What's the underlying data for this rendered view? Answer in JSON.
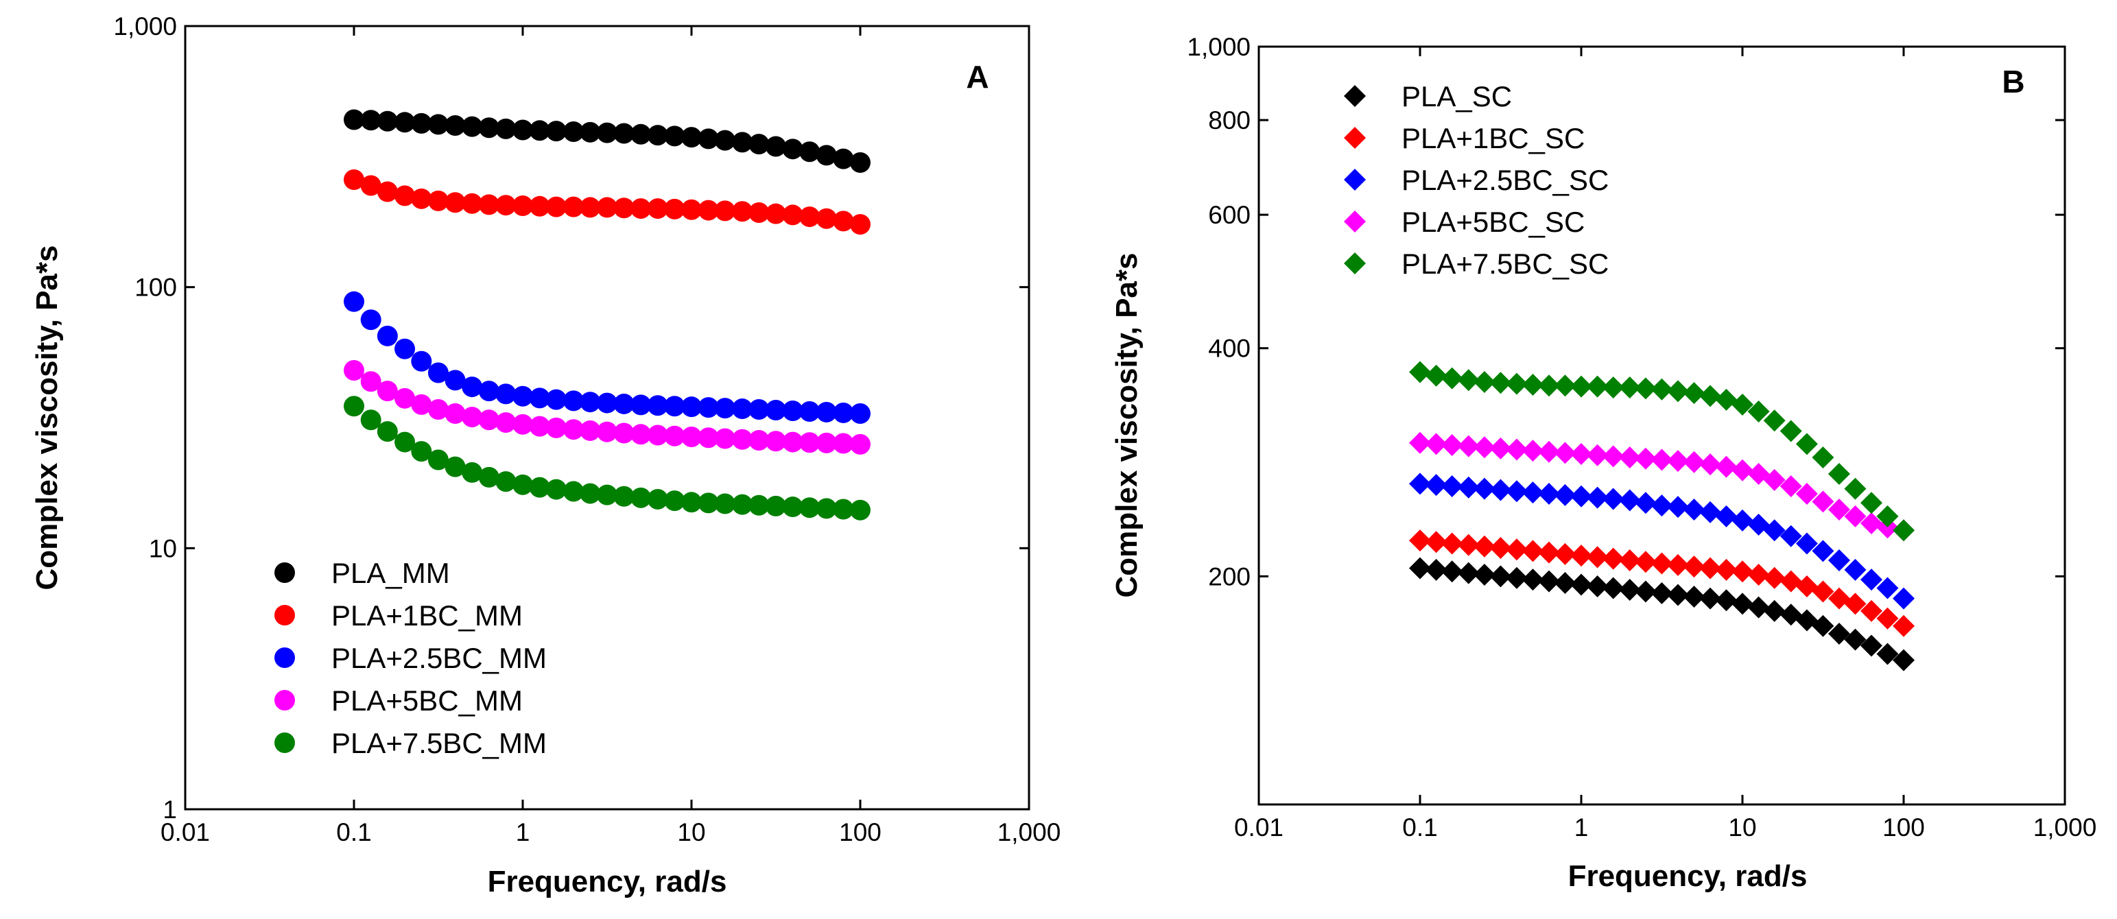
{
  "chart_data": [
    {
      "type": "scatter",
      "panel": "A",
      "xlabel": "Frequency, rad/s",
      "ylabel": "Complex viscosity, Pa*s",
      "xscale": "log",
      "yscale": "log",
      "xlim": [
        0.01,
        1000
      ],
      "ylim": [
        1,
        1000
      ],
      "x_ticks": [
        0.01,
        0.1,
        1,
        10,
        100,
        1000
      ],
      "x_tick_labels": [
        "0.01",
        "0.1",
        "1",
        "10",
        "100",
        "1,000"
      ],
      "y_ticks": [
        1,
        10,
        100,
        1000
      ],
      "y_tick_labels": [
        "1",
        "10",
        "100",
        "1,000"
      ],
      "marker": "circle",
      "legend_position": "lower-left",
      "x": [
        0.1,
        0.126,
        0.158,
        0.2,
        0.251,
        0.316,
        0.398,
        0.501,
        0.631,
        0.794,
        1.0,
        1.26,
        1.58,
        2.0,
        2.51,
        3.16,
        3.98,
        5.01,
        6.31,
        7.94,
        10.0,
        12.6,
        15.8,
        20.0,
        25.1,
        31.6,
        39.8,
        50.1,
        63.1,
        79.4,
        100.0
      ],
      "series": [
        {
          "name": "PLA_MM",
          "color": "#000000",
          "values": [
            438,
            436,
            432,
            428,
            424,
            420,
            416,
            412,
            408,
            404,
            400,
            398,
            396,
            394,
            392,
            390,
            388,
            385,
            382,
            379,
            375,
            370,
            365,
            359,
            353,
            346,
            338,
            330,
            320,
            310,
            300
          ]
        },
        {
          "name": "PLA+1BC_MM",
          "color": "#ff0000",
          "values": [
            258,
            245,
            232,
            224,
            218,
            214,
            211,
            209,
            207,
            206,
            205,
            204,
            203,
            203,
            202,
            202,
            201,
            200,
            200,
            199,
            198,
            197,
            196,
            195,
            193,
            191,
            189,
            186,
            183,
            179,
            174
          ]
        },
        {
          "name": "PLA+2.5BC_MM",
          "color": "#0000ff",
          "values": [
            88,
            75,
            65,
            58,
            52,
            47,
            44,
            41.5,
            40,
            39,
            38.2,
            37.6,
            37.1,
            36.7,
            36.3,
            36.0,
            35.7,
            35.4,
            35.2,
            35.0,
            34.8,
            34.6,
            34.4,
            34.2,
            34.0,
            33.8,
            33.6,
            33.4,
            33.2,
            33.0,
            32.8
          ]
        },
        {
          "name": "PLA+5BC_MM",
          "color": "#ff00ff",
          "values": [
            48,
            43.5,
            40,
            37.5,
            35.5,
            34,
            32.8,
            31.8,
            31.0,
            30.3,
            29.8,
            29.3,
            28.9,
            28.5,
            28.2,
            27.9,
            27.6,
            27.3,
            27.1,
            26.9,
            26.7,
            26.5,
            26.3,
            26.1,
            25.9,
            25.7,
            25.5,
            25.4,
            25.3,
            25.2,
            25.0
          ]
        },
        {
          "name": "PLA+7.5BC_MM",
          "color": "#008000",
          "values": [
            35,
            31,
            28,
            25.5,
            23.5,
            21.8,
            20.5,
            19.5,
            18.7,
            18.0,
            17.5,
            17.1,
            16.8,
            16.5,
            16.2,
            16.0,
            15.8,
            15.6,
            15.4,
            15.2,
            15.0,
            14.9,
            14.8,
            14.7,
            14.6,
            14.5,
            14.4,
            14.3,
            14.2,
            14.1,
            14.0
          ]
        }
      ]
    },
    {
      "type": "scatter",
      "panel": "B",
      "xlabel": "Frequency, rad/s",
      "ylabel": "Complex viscosity, Pa*s",
      "xscale": "log",
      "yscale": "log",
      "xlim": [
        0.01,
        1000
      ],
      "ylim": [
        100,
        1000
      ],
      "x_ticks": [
        0.01,
        0.1,
        1,
        10,
        100,
        1000
      ],
      "x_tick_labels": [
        "0.01",
        "0.1",
        "1",
        "10",
        "100",
        "1,000"
      ],
      "y_ticks": [
        200,
        400,
        600,
        800,
        1000
      ],
      "y_tick_labels": [
        "200",
        "400",
        "600",
        "800",
        "1,000"
      ],
      "marker": "diamond",
      "legend_position": "top-left",
      "x": [
        0.1,
        0.126,
        0.158,
        0.2,
        0.251,
        0.316,
        0.398,
        0.501,
        0.631,
        0.794,
        1.0,
        1.26,
        1.58,
        2.0,
        2.51,
        3.16,
        3.98,
        5.01,
        6.31,
        7.94,
        10.0,
        12.6,
        15.8,
        20.0,
        25.1,
        31.6,
        39.8,
        50.1,
        63.1,
        79.4,
        100.0
      ],
      "series": [
        {
          "name": "PLA_SC",
          "color": "#000000",
          "values": [
            205,
            204,
            203,
            202,
            201,
            200,
            199,
            198,
            197,
            196,
            195,
            194,
            193,
            192,
            191,
            190,
            189,
            188,
            187,
            186,
            184,
            182,
            180,
            178,
            175,
            172,
            168,
            165,
            162,
            158,
            155
          ]
        },
        {
          "name": "PLA+1BC_SC",
          "color": "#ff0000",
          "values": [
            223,
            222,
            221,
            220,
            219,
            218,
            217,
            216,
            215,
            214,
            213,
            212,
            211,
            210,
            209,
            208,
            207,
            206,
            205,
            204,
            203,
            201,
            199,
            197,
            194,
            191,
            187,
            184,
            180,
            176,
            172
          ]
        },
        {
          "name": "PLA+2.5BC_SC",
          "color": "#0000ff",
          "values": [
            265,
            264,
            263,
            262,
            261,
            260,
            259,
            258,
            257,
            256,
            255,
            254,
            253,
            252,
            250,
            248,
            247,
            245,
            243,
            240,
            237,
            234,
            230,
            226,
            221,
            216,
            210,
            204,
            198,
            193,
            187
          ]
        },
        {
          "name": "PLA+5BC_SC",
          "color": "#ff00ff",
          "values": [
            300,
            299,
            298,
            297,
            296,
            295,
            294,
            293,
            292,
            291,
            290,
            289,
            288,
            287,
            286,
            285,
            284,
            283,
            281,
            279,
            276,
            273,
            268,
            263,
            257,
            251,
            245,
            240,
            235,
            232,
            230
          ]
        },
        {
          "name": "PLA+7.5BC_SC",
          "color": "#008000",
          "values": [
            372,
            368,
            365,
            363,
            361,
            360,
            359,
            358,
            357,
            357,
            356,
            356,
            355,
            355,
            354,
            353,
            351,
            349,
            346,
            342,
            337,
            330,
            321,
            311,
            299,
            287,
            273,
            261,
            250,
            240,
            230
          ]
        }
      ]
    }
  ]
}
